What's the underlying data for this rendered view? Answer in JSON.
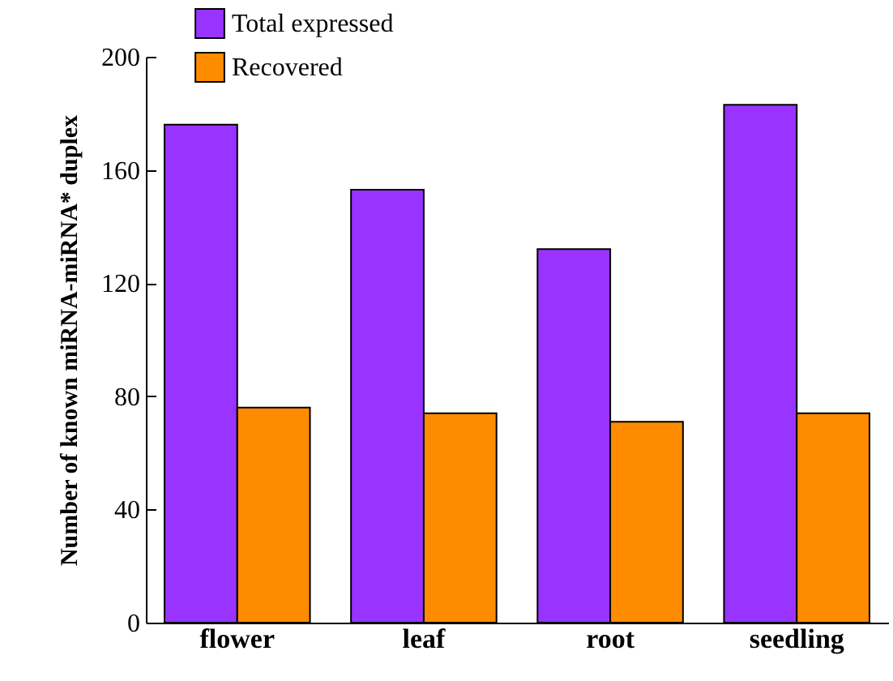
{
  "chart_data": {
    "type": "bar",
    "ylabel": "Number of known miRNA-miRNA* duplex",
    "categories": [
      "flower",
      "leaf",
      "root",
      "seedling"
    ],
    "series": [
      {
        "name": "Total expressed",
        "color": "#9933ff",
        "values": [
          176,
          153,
          132,
          183
        ]
      },
      {
        "name": "Recovered",
        "color": "#ff8c00",
        "values": [
          76,
          74,
          71,
          74
        ]
      }
    ],
    "ylim": [
      0,
      200
    ],
    "yticks": [
      0,
      40,
      80,
      120,
      160,
      200
    ],
    "grid": false,
    "legend": "top left"
  }
}
